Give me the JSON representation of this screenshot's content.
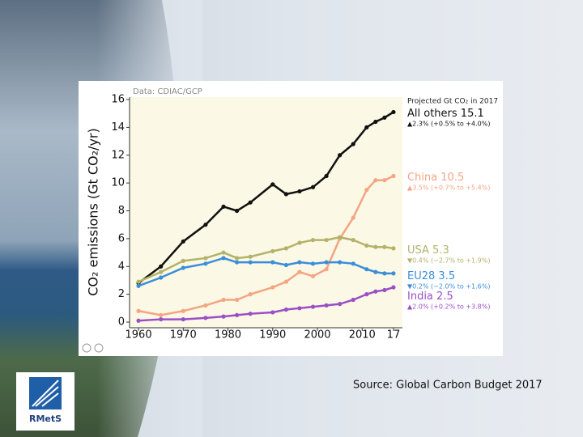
{
  "chart_data": {
    "type": "line",
    "data_credit": "Data: CDIAC/GCP",
    "projection_header": "Projected Gt CO₂ in 2017",
    "y_label": "CO₂ emissions (Gt CO₂/yr)",
    "x": [
      1960,
      1965,
      1970,
      1975,
      1979,
      1982,
      1985,
      1990,
      1993,
      1996,
      1999,
      2002,
      2005,
      2008,
      2011,
      2013,
      2015,
      2017
    ],
    "series": [
      {
        "name": "All others",
        "color": "#111111",
        "projection": "▲2.3% (+0.5% to +4.0%)",
        "values": [
          2.8,
          4.0,
          5.8,
          7.0,
          8.3,
          8.0,
          8.6,
          9.9,
          9.2,
          9.4,
          9.7,
          10.5,
          12.0,
          12.8,
          14.0,
          14.4,
          14.7,
          15.1
        ]
      },
      {
        "name": "China",
        "color": "#f4a582",
        "projection": "▲3.5% (+0.7% to +5.4%)",
        "values": [
          0.8,
          0.5,
          0.8,
          1.2,
          1.6,
          1.6,
          2.0,
          2.5,
          2.9,
          3.6,
          3.3,
          3.8,
          6.0,
          7.5,
          9.5,
          10.2,
          10.2,
          10.5
        ]
      },
      {
        "name": "USA",
        "color": "#b3b26a",
        "projection": "▼0.4% (−2.7% to +1.9%)",
        "values": [
          2.9,
          3.6,
          4.4,
          4.6,
          5.0,
          4.6,
          4.7,
          5.1,
          5.3,
          5.7,
          5.9,
          5.9,
          6.1,
          5.9,
          5.5,
          5.4,
          5.4,
          5.3
        ]
      },
      {
        "name": "EU28",
        "color": "#3a8ed8",
        "projection": "▼0.2% (−2.0% to +1.6%)",
        "values": [
          2.6,
          3.2,
          3.9,
          4.2,
          4.6,
          4.3,
          4.3,
          4.3,
          4.1,
          4.3,
          4.2,
          4.3,
          4.3,
          4.2,
          3.8,
          3.6,
          3.5,
          3.5
        ]
      },
      {
        "name": "India",
        "color": "#9a4fc6",
        "projection": "▲2.0% (+0.2% to +3.8%)",
        "values": [
          0.1,
          0.2,
          0.2,
          0.3,
          0.4,
          0.5,
          0.6,
          0.7,
          0.9,
          1.0,
          1.1,
          1.2,
          1.3,
          1.6,
          2.0,
          2.2,
          2.3,
          2.5
        ]
      }
    ],
    "xlim": [
      1958,
      2019
    ],
    "xticks": [
      1960,
      1970,
      1980,
      1990,
      2000,
      2010,
      {
        "value": 2017,
        "label": "17"
      }
    ],
    "ylim": [
      0,
      16
    ],
    "yticks": [
      0,
      2,
      4,
      6,
      8,
      10,
      12,
      14,
      16
    ]
  },
  "slide": {
    "source": "Source: Global Carbon Budget 2017",
    "logo": "RMetS"
  }
}
